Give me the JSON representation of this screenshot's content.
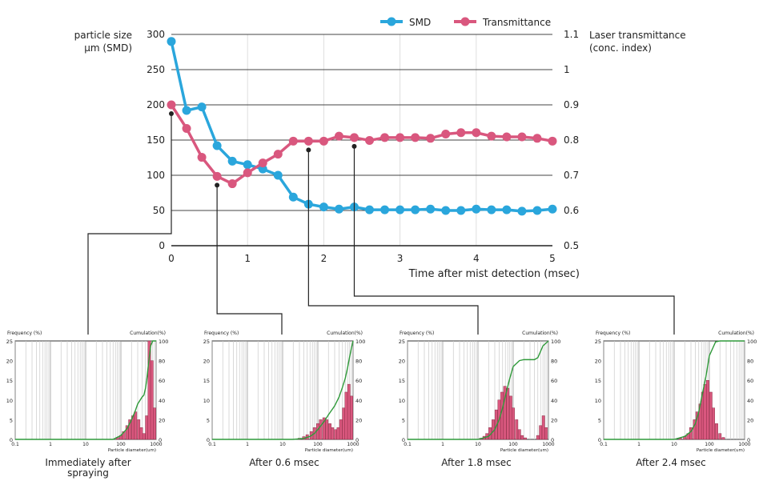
{
  "chart_data": [
    {
      "type": "line",
      "y_left_label_line1": "particle size",
      "y_left_label_line2": "μm (SMD)",
      "y_right_label_line1": "Laser transmittance",
      "y_right_label_line2": "(conc. index)",
      "xlabel": "Time after mist detection (msec)",
      "xlim": [
        0,
        5
      ],
      "ylim_left": [
        0,
        300
      ],
      "ylim_right": [
        0.5,
        1.1
      ],
      "x_ticks": [
        "0",
        "1",
        "2",
        "3",
        "4",
        "5"
      ],
      "y_left_ticks": [
        "0",
        "50",
        "100",
        "150",
        "200",
        "250",
        "300"
      ],
      "y_right_ticks": [
        "0.5",
        "0.6",
        "0.7",
        "0.8",
        "0.9",
        "1",
        "1.1"
      ],
      "grid": true,
      "legend_position": "top-right",
      "series": [
        {
          "name": "SMD",
          "color": "#2aa6dc",
          "axis": "left",
          "x": [
            0,
            0.2,
            0.4,
            0.6,
            0.8,
            1.0,
            1.2,
            1.4,
            1.6,
            1.8,
            2.0,
            2.2,
            2.4,
            2.6,
            2.8,
            3.0,
            3.2,
            3.4,
            3.6,
            3.8,
            4.0,
            4.2,
            4.4,
            4.6,
            4.8,
            5.0
          ],
          "values": [
            290,
            192,
            197,
            142,
            120,
            115,
            109,
            100,
            69,
            59,
            55,
            52,
            55,
            51,
            51,
            51,
            51,
            52,
            50,
            50,
            52,
            51,
            51,
            49,
            50,
            52
          ]
        },
        {
          "name": "Transmittance",
          "color": "#d9577e",
          "axis": "right",
          "x": [
            0,
            0.2,
            0.4,
            0.6,
            0.8,
            1.0,
            1.2,
            1.4,
            1.6,
            1.8,
            2.0,
            2.2,
            2.4,
            2.6,
            2.8,
            3.0,
            3.2,
            3.4,
            3.6,
            3.8,
            4.0,
            4.2,
            4.4,
            4.6,
            4.8,
            5.0
          ],
          "values": [
            0.9,
            0.833,
            0.751,
            0.697,
            0.676,
            0.707,
            0.735,
            0.76,
            0.797,
            0.797,
            0.797,
            0.811,
            0.807,
            0.799,
            0.807,
            0.807,
            0.807,
            0.805,
            0.817,
            0.821,
            0.821,
            0.811,
            0.809,
            0.809,
            0.805,
            0.797
          ]
        }
      ],
      "markers_x": [
        0,
        0.6,
        1.8,
        2.4
      ]
    },
    {
      "type": "bar",
      "title": "Immediately after spraying",
      "ylabel_left": "Frequency (%)",
      "ylabel_right": "Cumulation(%)",
      "xlabel": "Particle diameter(um)",
      "xlim": [
        0.1,
        1000
      ],
      "ylim": [
        0,
        25
      ],
      "ylim_cumulative": [
        0,
        100
      ],
      "x_ticks": [
        "0.1",
        "1",
        "10",
        "100",
        "1000"
      ],
      "y_ticks": [
        "0",
        "5",
        "10",
        "15",
        "20",
        "25"
      ],
      "y_right_ticks": [
        "0",
        "20",
        "40",
        "60",
        "80",
        "100"
      ],
      "bars": {
        "x": [
          80,
          100,
          120,
          150,
          180,
          220,
          260,
          320,
          380,
          450,
          540,
          640,
          760,
          900
        ],
        "values": [
          0.5,
          1,
          2,
          3.5,
          5,
          6,
          7,
          5,
          3,
          1.5,
          6,
          25,
          20,
          8
        ]
      },
      "cumulative": {
        "x": [
          60,
          100,
          150,
          200,
          250,
          300,
          400,
          450,
          500,
          540,
          600,
          700,
          800
        ],
        "values": [
          0,
          4,
          11,
          20,
          28,
          36,
          43,
          45,
          52,
          60,
          75,
          95,
          100
        ]
      }
    },
    {
      "type": "bar",
      "title": "After 0.6 msec",
      "ylabel_left": "Frequency (%)",
      "ylabel_right": "Cumulation(%)",
      "xlabel": "Particle diameter(um)",
      "xlim": [
        0.1,
        1000
      ],
      "ylim": [
        0,
        25
      ],
      "ylim_cumulative": [
        0,
        100
      ],
      "x_ticks": [
        "0.1",
        "1",
        "10",
        "100",
        "1000"
      ],
      "y_ticks": [
        "0",
        "5",
        "10",
        "15",
        "20",
        "25"
      ],
      "y_right_ticks": [
        "0",
        "20",
        "40",
        "60",
        "80",
        "100"
      ],
      "bars": {
        "x": [
          30,
          40,
          50,
          65,
          80,
          100,
          120,
          150,
          180,
          220,
          260,
          320,
          380,
          450,
          540,
          640,
          760,
          900
        ],
        "values": [
          0.3,
          0.7,
          1.2,
          2,
          3,
          4,
          5,
          5.5,
          5,
          4,
          3,
          2.5,
          3,
          5,
          8,
          12,
          14,
          11
        ]
      },
      "cumulative": {
        "x": [
          20,
          40,
          60,
          80,
          100,
          150,
          200,
          300,
          400,
          500,
          600,
          700,
          800,
          900,
          1000
        ],
        "values": [
          0,
          1,
          3,
          6,
          10,
          18,
          25,
          34,
          43,
          53,
          62,
          73,
          84,
          93,
          100
        ]
      }
    },
    {
      "type": "bar",
      "title": "After 1.8 msec",
      "ylabel_left": "Frequency (%)",
      "ylabel_right": "Cumulation(%)",
      "xlabel": "Particle diameter(um)",
      "xlim": [
        0.1,
        1000
      ],
      "ylim": [
        0,
        25
      ],
      "ylim_cumulative": [
        0,
        100
      ],
      "x_ticks": [
        "0.1",
        "1",
        "10",
        "100",
        "1000"
      ],
      "y_ticks": [
        "0",
        "5",
        "10",
        "15",
        "20",
        "25"
      ],
      "y_right_ticks": [
        "0",
        "20",
        "40",
        "60",
        "80",
        "100"
      ],
      "bars": {
        "x": [
          12,
          15,
          18,
          22,
          27,
          33,
          40,
          48,
          58,
          70,
          85,
          100,
          125,
          150,
          180,
          220,
          500,
          600,
          720,
          860
        ],
        "values": [
          0.3,
          0.8,
          1.5,
          3,
          5,
          7.5,
          10,
          12,
          13.5,
          13,
          11,
          8,
          5,
          2.5,
          1,
          0.4,
          1,
          3.5,
          6,
          3
        ]
      },
      "cumulative": {
        "x": [
          10,
          20,
          30,
          40,
          50,
          60,
          80,
          100,
          150,
          200,
          300,
          400,
          500,
          700,
          1000
        ],
        "values": [
          0,
          3,
          10,
          20,
          32,
          44,
          62,
          74,
          80,
          81,
          81,
          81,
          83,
          95,
          100
        ]
      }
    },
    {
      "type": "bar",
      "title": "After 2.4 msec",
      "ylabel_left": "Frequency (%)",
      "ylabel_right": "Cumulation(%)",
      "xlabel": "Particle diameter(um)",
      "xlim": [
        0.1,
        1000
      ],
      "ylim": [
        0,
        25
      ],
      "ylim_cumulative": [
        0,
        100
      ],
      "x_ticks": [
        "0.1",
        "1",
        "10",
        "100",
        "1000"
      ],
      "y_ticks": [
        "0",
        "5",
        "10",
        "15",
        "20",
        "25"
      ],
      "y_right_ticks": [
        "0",
        "20",
        "40",
        "60",
        "80",
        "100"
      ],
      "bars": {
        "x": [
          15,
          20,
          25,
          30,
          38,
          45,
          55,
          65,
          75,
          90,
          110,
          130,
          160,
          200,
          250
        ],
        "values": [
          0.3,
          0.8,
          1.5,
          3,
          5,
          7,
          9,
          12,
          14,
          15,
          12,
          8,
          4,
          1.5,
          0.5
        ]
      },
      "cumulative": {
        "x": [
          10,
          20,
          30,
          40,
          50,
          60,
          80,
          100,
          150,
          200,
          300
        ],
        "values": [
          0,
          3,
          8,
          16,
          28,
          42,
          64,
          85,
          99,
          100,
          100
        ]
      }
    }
  ],
  "captions": [
    {
      "line1": "Immediately after",
      "line2": "spraying"
    },
    {
      "line1": "After 0.6 msec",
      "line2": ""
    },
    {
      "line1": "After 1.8 msec",
      "line2": ""
    },
    {
      "line1": "After 2.4 msec",
      "line2": ""
    }
  ],
  "colors": {
    "bar_fill": "#d9577e",
    "bar_stroke": "#7a2438",
    "cumulative_line": "#2f9a3a",
    "grid": "#c9c9c9",
    "axis": "#222222",
    "connector": "#222222"
  }
}
